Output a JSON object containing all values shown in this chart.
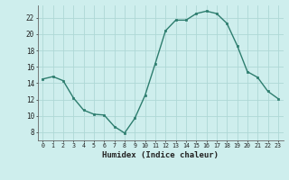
{
  "x": [
    0,
    1,
    2,
    3,
    4,
    5,
    6,
    7,
    8,
    9,
    10,
    11,
    12,
    13,
    14,
    15,
    16,
    17,
    18,
    19,
    20,
    21,
    22,
    23
  ],
  "y": [
    14.5,
    14.8,
    14.3,
    12.2,
    10.7,
    10.2,
    10.1,
    8.7,
    7.9,
    9.7,
    12.5,
    16.4,
    20.4,
    21.7,
    21.7,
    22.5,
    22.8,
    22.5,
    21.3,
    18.6,
    15.4,
    14.7,
    13.0,
    12.1
  ],
  "xlabel": "Humidex (Indice chaleur)",
  "line_color": "#2d7d6e",
  "marker_color": "#2d7d6e",
  "bg_color": "#ceeeed",
  "grid_color": "#aed8d6",
  "ylim": [
    7,
    23.5
  ],
  "xlim": [
    -0.5,
    23.5
  ],
  "yticks": [
    8,
    10,
    12,
    14,
    16,
    18,
    20,
    22
  ],
  "xticks": [
    0,
    1,
    2,
    3,
    4,
    5,
    6,
    7,
    8,
    9,
    10,
    11,
    12,
    13,
    14,
    15,
    16,
    17,
    18,
    19,
    20,
    21,
    22,
    23
  ]
}
